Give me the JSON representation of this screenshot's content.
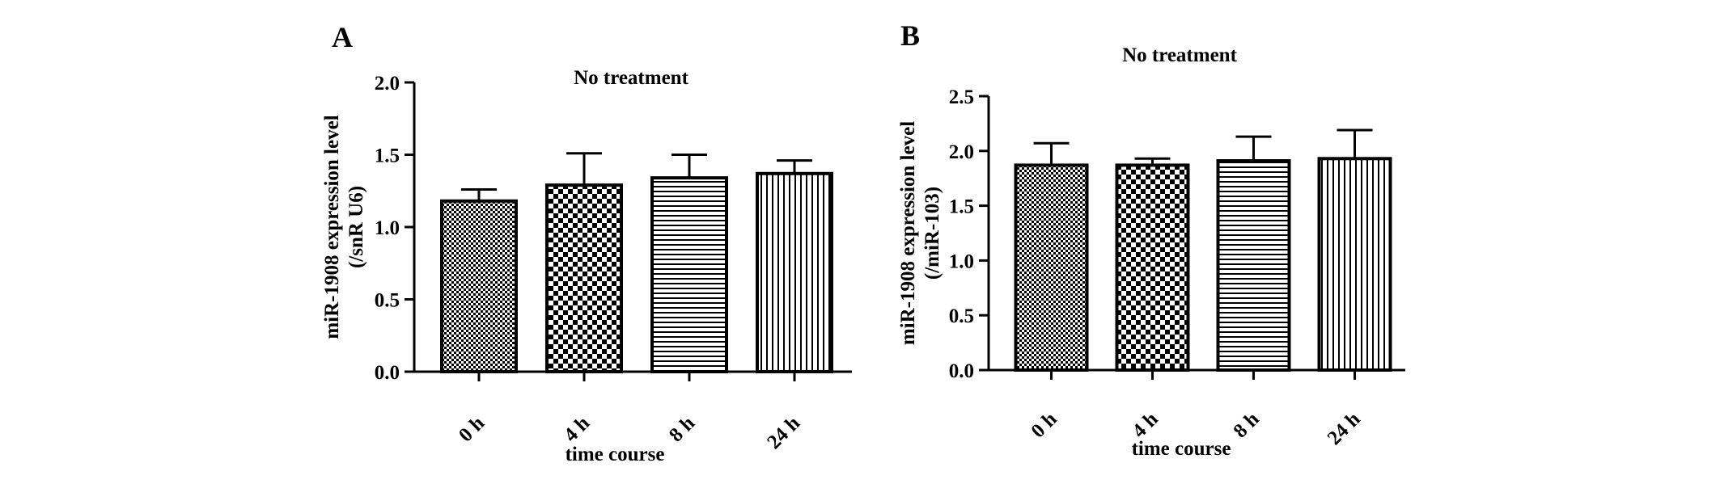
{
  "chart_data": [
    {
      "type": "bar",
      "panel": "A",
      "title": "No treatment",
      "ylabel_lines": [
        "miR-1908 expression level",
        "(/snR U6)"
      ],
      "xlabel": "time course",
      "categories": [
        "0 h",
        "4 h",
        "8 h",
        "24 h"
      ],
      "values": [
        1.18,
        1.29,
        1.34,
        1.37
      ],
      "error": [
        0.08,
        0.22,
        0.16,
        0.09
      ],
      "patterns": [
        "fine-check",
        "coarse-check",
        "horizontal-lines",
        "vertical-lines"
      ],
      "ylim": [
        0,
        2.0
      ],
      "yticks": [
        "0.0",
        "0.5",
        "1.0",
        "1.5",
        "2.0"
      ],
      "grid": false
    },
    {
      "type": "bar",
      "panel": "B",
      "title": "No treatment",
      "ylabel_lines": [
        "miR-1908 expression level",
        "(/miR-103)"
      ],
      "xlabel": "time course",
      "categories": [
        "0 h",
        "4 h",
        "8 h",
        "24 h"
      ],
      "values": [
        1.87,
        1.87,
        1.91,
        1.93
      ],
      "error": [
        0.2,
        0.06,
        0.22,
        0.26
      ],
      "patterns": [
        "fine-check",
        "coarse-check",
        "horizontal-lines",
        "vertical-lines"
      ],
      "ylim": [
        0,
        2.5
      ],
      "yticks": [
        "0.0",
        "0.5",
        "1.0",
        "1.5",
        "2.0",
        "2.5"
      ],
      "grid": false
    }
  ]
}
